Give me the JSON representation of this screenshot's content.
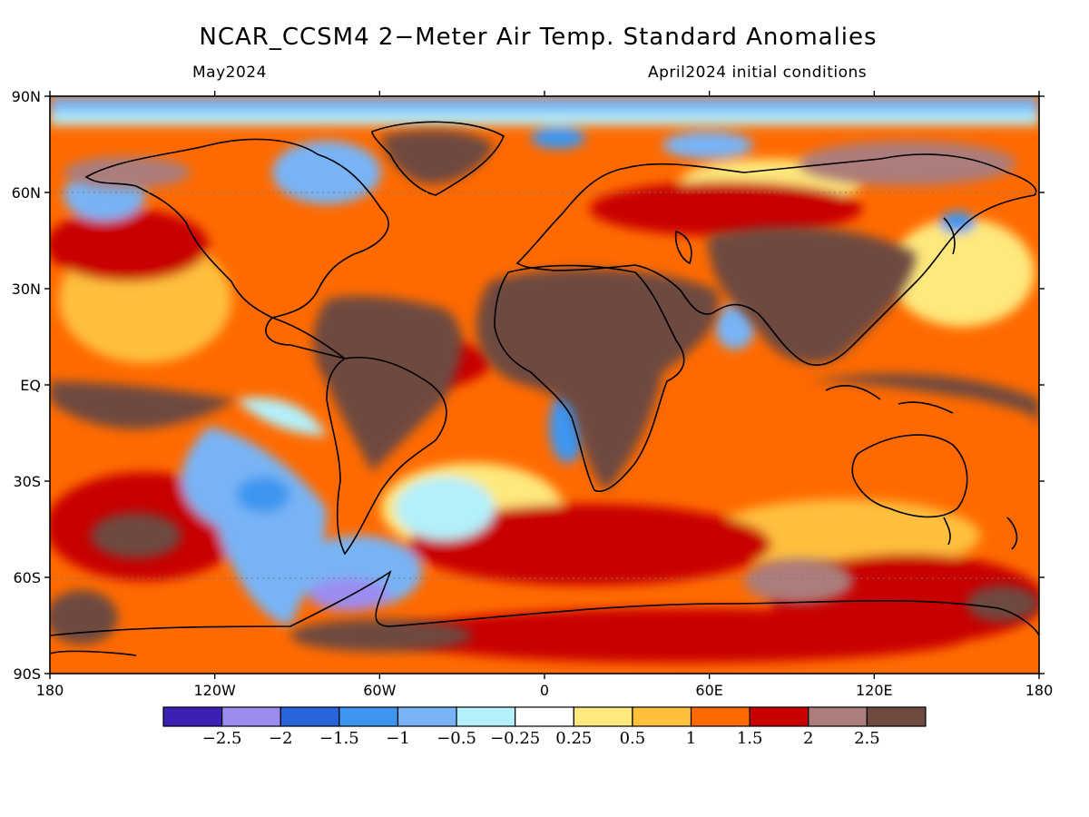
{
  "title": "NCAR_CCSM4 2−Meter Air Temp. Standard Anomalies",
  "valid_month": "May2024",
  "init_conditions": "April2024 initial conditions",
  "lat_labels": [
    "90N",
    "60N",
    "30N",
    "EQ",
    "30S",
    "60S",
    "90S"
  ],
  "lon_labels": [
    "180",
    "120W",
    "60W",
    "0",
    "60E",
    "120E",
    "180"
  ],
  "colorbar": {
    "colors": [
      "#3c20b4",
      "#9b8cf0",
      "#2864dc",
      "#3c96f0",
      "#78b4f5",
      "#b4f0fa",
      "#ffffff",
      "#ffe87c",
      "#ffc03c",
      "#ff6a00",
      "#c80000",
      "#ac7d7a",
      "#6e4a3f"
    ],
    "tick_labels": [
      "−2.5",
      "−2",
      "−1.5",
      "−1",
      "−0.5",
      "−0.25",
      "0.25",
      "0.5",
      "1",
      "1.5",
      "2",
      "2.5"
    ]
  },
  "colors": {
    "warm_strong": "#6e4a3f",
    "warm_mid": "#ac7d7a",
    "warm_red": "#c80000",
    "warm_orange": "#ff6a00",
    "warm_light": "#ffc03c",
    "cool_light": "#b4f0fa",
    "cool_mid": "#78b4f5",
    "cool_blue": "#3c96f0",
    "cool_purple": "#9b8cf0"
  }
}
